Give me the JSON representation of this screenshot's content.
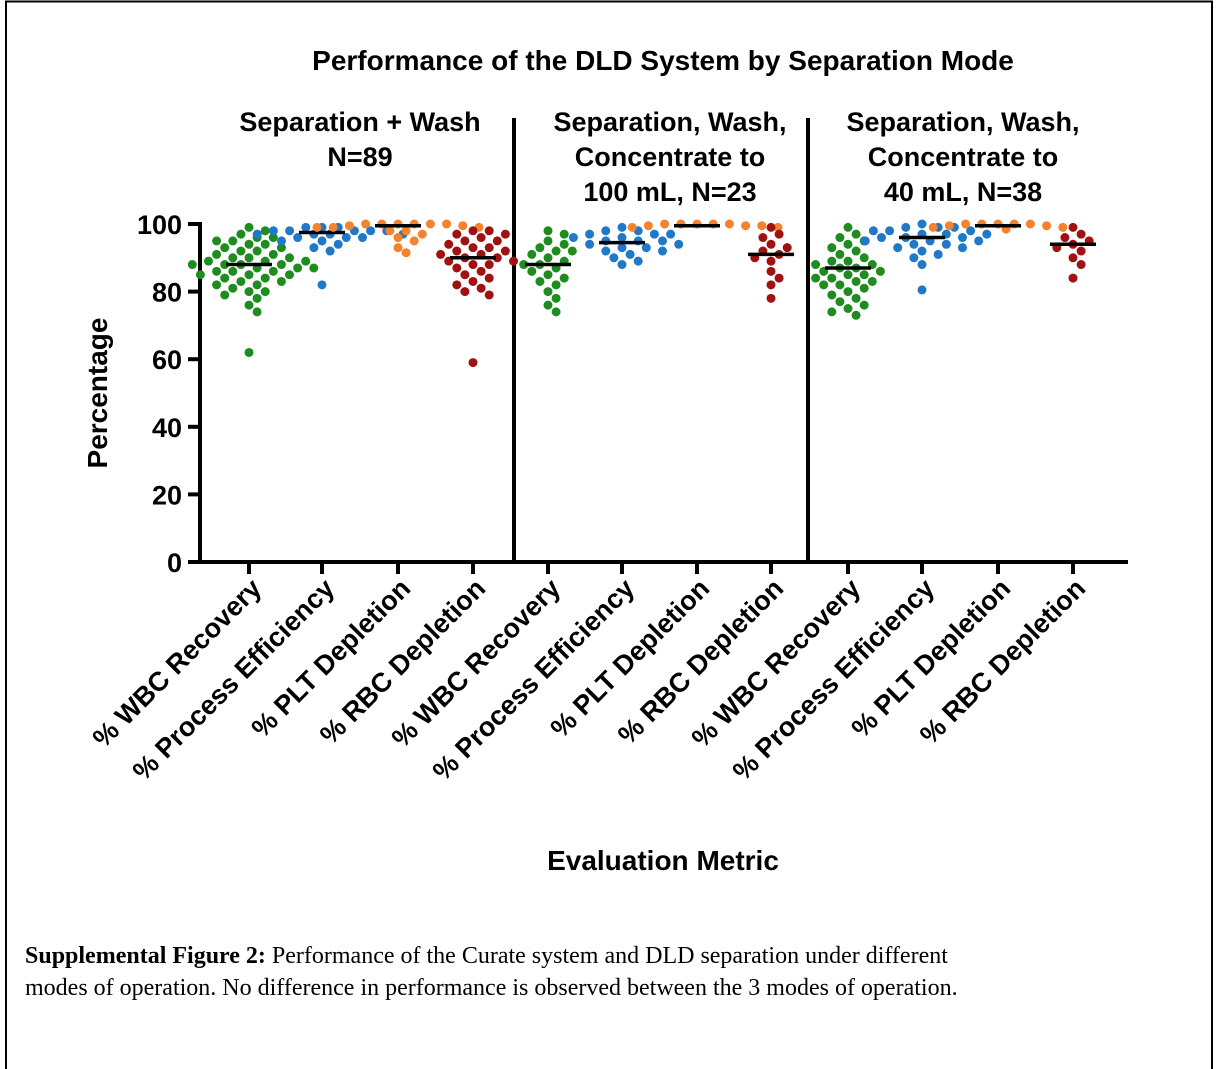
{
  "chart_data": {
    "type": "dot",
    "title": "Performance of the DLD System by Separation Mode",
    "ylabel": "Percentage",
    "xlabel": "Evaluation Metric",
    "ylim": [
      0,
      100
    ],
    "yticks": [
      0,
      20,
      40,
      60,
      80,
      100
    ],
    "colors": [
      "#1e8c1e",
      "#1f78c8",
      "#f5822d",
      "#a01212"
    ],
    "panels": [
      {
        "title_lines": [
          "Separation +  Wash",
          "N=89"
        ],
        "categories": [
          "% WBC Recovery",
          "% Process Efficiency",
          "% PLT Depletion",
          "% RBC Depletion"
        ],
        "points": [
          [
            99,
            98,
            97,
            96,
            96,
            95,
            95,
            94,
            94,
            93,
            93,
            92,
            92,
            91,
            91,
            90,
            90,
            90,
            89,
            89,
            89,
            88,
            88,
            88,
            88,
            87,
            87,
            87,
            86,
            86,
            86,
            85,
            85,
            85,
            84,
            84,
            83,
            83,
            82,
            82,
            81,
            80,
            80,
            79,
            78,
            76,
            74,
            62
          ],
          [
            99,
            99,
            99,
            98,
            98,
            98,
            98,
            98,
            97,
            97,
            97,
            97,
            96,
            96,
            96,
            95,
            95,
            94,
            93,
            92,
            82
          ],
          [
            100,
            100,
            100,
            100,
            100,
            100,
            99.5,
            99.5,
            99,
            99,
            99,
            98,
            98,
            97,
            96,
            95,
            93,
            91.5
          ],
          [
            98,
            98,
            97,
            97,
            96,
            95,
            95,
            94,
            93,
            93,
            92,
            92,
            91,
            91,
            90,
            90,
            89,
            89,
            88,
            88,
            87,
            86,
            85,
            84,
            83,
            82,
            81,
            80,
            79,
            59
          ]
        ],
        "medians": [
          88,
          97.5,
          99.5,
          90
        ]
      },
      {
        "title_lines": [
          "Separation, Wash,",
          "Concentrate to",
          "100 mL, N=23"
        ],
        "categories": [
          "% WBC Recovery",
          "% Process Efficiency",
          "% PLT Depletion",
          "% RBC Depletion"
        ],
        "points": [
          [
            98,
            97,
            95,
            94,
            93,
            92,
            92,
            91,
            90,
            89,
            88,
            88,
            87,
            86,
            85,
            84,
            83,
            82,
            80,
            78,
            76,
            74
          ],
          [
            99,
            98,
            98,
            97,
            97,
            97,
            96,
            96,
            95,
            95,
            95,
            94,
            94,
            93,
            93,
            92,
            92,
            91,
            90,
            89,
            88
          ],
          [
            100,
            100,
            100,
            100,
            100,
            99.5,
            99.5,
            99.5,
            99,
            99
          ],
          [
            99,
            97,
            96,
            94,
            93,
            92,
            91,
            90,
            89,
            86,
            84,
            82,
            78
          ]
        ],
        "medians": [
          88,
          94.5,
          99.5,
          91
        ]
      },
      {
        "title_lines": [
          "Separation, Wash,",
          "Concentrate to",
          "40 mL, N=38"
        ],
        "categories": [
          "% WBC Recovery",
          "% Process Efficiency",
          "% PLT Depletion",
          "% RBC Depletion"
        ],
        "points": [
          [
            99,
            97,
            96,
            95,
            94,
            93,
            92,
            91,
            90,
            89,
            89,
            88,
            88,
            87,
            87,
            86,
            86,
            85,
            85,
            84,
            84,
            83,
            83,
            82,
            82,
            81,
            80,
            79,
            78,
            77,
            76,
            75,
            74,
            73
          ],
          [
            100,
            99,
            99,
            99,
            98,
            98,
            98,
            97,
            97,
            97,
            96,
            96,
            96,
            95,
            95,
            95,
            94,
            94,
            93,
            93,
            92,
            91,
            90,
            88,
            80.5
          ],
          [
            100,
            100,
            100,
            100,
            100,
            99.5,
            99.5,
            99,
            99,
            98.5
          ],
          [
            99,
            97,
            96,
            95,
            94,
            93,
            92,
            90,
            88,
            84
          ]
        ],
        "medians": [
          87,
          96,
          99.5,
          94
        ]
      }
    ]
  },
  "caption": {
    "label": "Supplemental Figure 2:",
    "lines": [
      " Performance of the Curate system and DLD separation under different",
      "modes of operation. No difference in performance is observed between the 3 modes of operation."
    ]
  }
}
